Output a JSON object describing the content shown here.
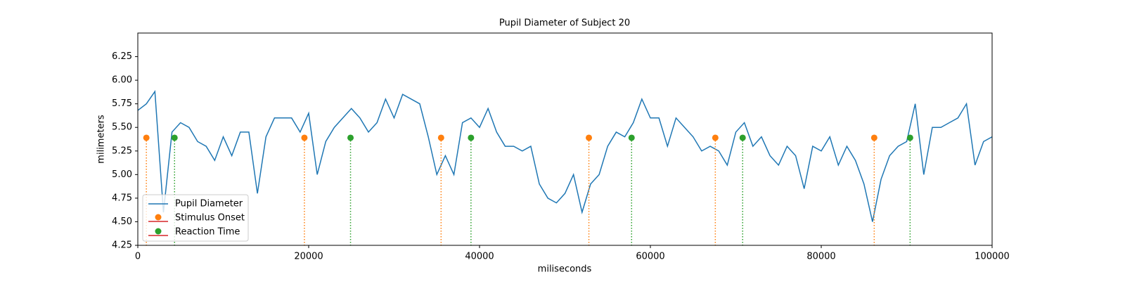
{
  "chart_data": {
    "type": "line",
    "title": "Pupil Diameter of Subject 20",
    "x_label": "miliseconds",
    "y_label": "milimeters",
    "xlim": [
      0,
      100000
    ],
    "xticks": [
      0,
      20000,
      40000,
      60000,
      80000,
      100000
    ],
    "ylim": [
      4.25,
      6.5
    ],
    "yticks": [
      4.25,
      {
        "value": 4.5,
        "label": "4.50"
      },
      4.75,
      {
        "value": 5,
        "label": "5.00"
      },
      5.25,
      {
        "value": 5.5,
        "label": "5.50"
      },
      5.75,
      {
        "value": 6,
        "label": "6.00"
      },
      6.25
    ],
    "legend": "lower left",
    "stem_baseline_color": "#d62728",
    "series": [
      {
        "name": "Pupil Diameter",
        "type": "line",
        "color": "#1f77b4",
        "x": [
          0,
          1000,
          2000,
          3000,
          4000,
          5000,
          6000,
          7000,
          8000,
          9000,
          10000,
          11000,
          12000,
          13000,
          14000,
          15000,
          16000,
          17000,
          18000,
          19000,
          20000,
          21000,
          22000,
          23000,
          24000,
          25000,
          26000,
          27000,
          28000,
          29000,
          30000,
          31000,
          32000,
          33000,
          34000,
          35000,
          36000,
          37000,
          38000,
          39000,
          40000,
          41000,
          42000,
          43000,
          44000,
          45000,
          46000,
          47000,
          48000,
          49000,
          50000,
          51000,
          52000,
          53000,
          54000,
          55000,
          56000,
          57000,
          58000,
          59000,
          60000,
          61000,
          62000,
          63000,
          64000,
          65000,
          66000,
          67000,
          68000,
          69000,
          70000,
          71000,
          72000,
          73000,
          74000,
          75000,
          76000,
          77000,
          78000,
          79000,
          80000,
          81000,
          82000,
          83000,
          84000,
          85000,
          86000,
          87000,
          88000,
          89000,
          90000,
          91000,
          92000,
          93000,
          94000,
          95000,
          96000,
          97000,
          98000,
          99000,
          100000
        ],
        "values": [
          5.68,
          5.75,
          5.88,
          4.6,
          5.45,
          5.55,
          5.5,
          5.35,
          5.3,
          5.15,
          5.4,
          5.2,
          5.45,
          5.45,
          4.8,
          5.4,
          5.6,
          5.6,
          5.6,
          5.45,
          5.65,
          5.0,
          5.35,
          5.5,
          5.6,
          5.7,
          5.6,
          5.45,
          5.55,
          5.8,
          5.6,
          5.85,
          5.8,
          5.75,
          5.4,
          5.0,
          5.2,
          5.0,
          5.55,
          5.6,
          5.5,
          5.7,
          5.45,
          5.3,
          5.3,
          5.25,
          5.3,
          4.9,
          4.75,
          4.7,
          4.8,
          5.0,
          4.6,
          4.9,
          5.0,
          5.3,
          5.45,
          5.4,
          5.55,
          5.8,
          5.6,
          5.6,
          5.3,
          5.6,
          5.5,
          5.4,
          5.25,
          5.3,
          5.25,
          5.1,
          5.45,
          5.55,
          5.3,
          5.4,
          5.2,
          5.1,
          5.3,
          5.2,
          4.85,
          5.3,
          5.25,
          5.4,
          5.1,
          5.3,
          5.15,
          4.9,
          4.5,
          4.95,
          5.2,
          5.3,
          5.35,
          5.75,
          5.0,
          5.5,
          5.5,
          5.55,
          5.6,
          5.75,
          5.1,
          5.35,
          5.4
        ]
      },
      {
        "name": "Stimulus Onset",
        "type": "stem",
        "color": "#ff7f0e",
        "x": [
          1000,
          19500,
          35500,
          52800,
          67600,
          86200
        ],
        "values": [
          5.39,
          5.39,
          5.39,
          5.39,
          5.39,
          5.39
        ]
      },
      {
        "name": "Reaction Time",
        "type": "stem",
        "color": "#2ca02c",
        "x": [
          4300,
          24900,
          39000,
          57800,
          70800,
          90400
        ],
        "values": [
          5.39,
          5.39,
          5.39,
          5.39,
          5.39,
          5.39
        ]
      }
    ]
  }
}
